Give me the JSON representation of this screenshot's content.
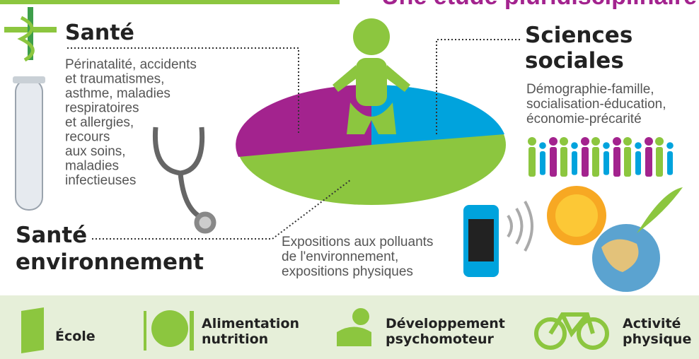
{
  "header": {
    "title": "Une étude pluridisciplinaire"
  },
  "sante": {
    "title": "Santé",
    "lines": [
      "Périnatalité, accidents",
      "et traumatismes,",
      "asthme, maladies",
      "respiratoires",
      "et allergies,",
      "recours",
      "aux soins,",
      "maladies",
      "infectieuses"
    ]
  },
  "sciences_sociales": {
    "title": [
      "Sciences",
      "sociales"
    ],
    "lines": [
      "Démographie-famille,",
      "socialisation-éducation,",
      "économie-précarité"
    ]
  },
  "sante_environnement": {
    "title": [
      "Santé",
      "environnement"
    ],
    "lines": [
      "Expositions aux polluants",
      "de l'environnement,",
      "expositions physiques"
    ]
  },
  "footer": {
    "items": [
      {
        "lines": [
          "École"
        ]
      },
      {
        "lines": [
          "Alimentation",
          "nutrition"
        ]
      },
      {
        "lines": [
          "Développement",
          "psychomoteur"
        ]
      },
      {
        "lines": [
          "Activité",
          "physique"
        ]
      }
    ]
  }
}
